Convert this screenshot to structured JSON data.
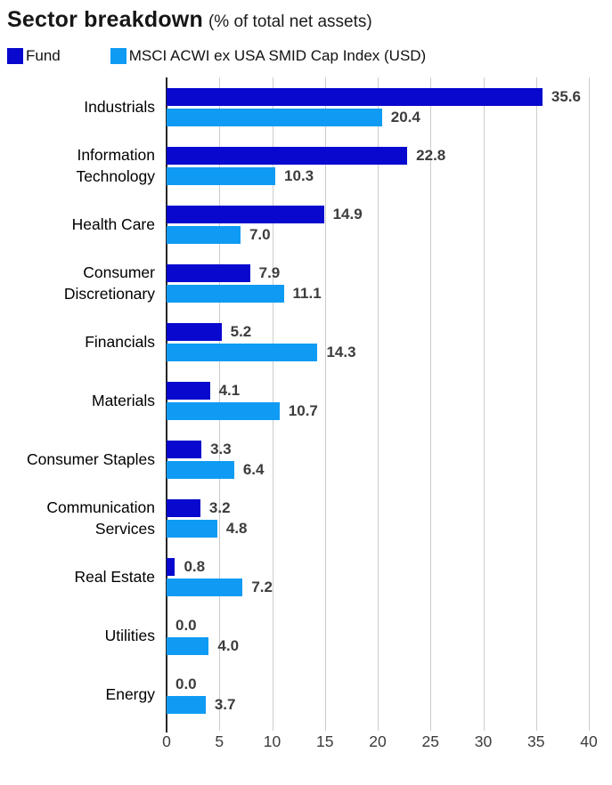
{
  "title": {
    "main": "Sector breakdown",
    "subtitle": "(% of total net assets)"
  },
  "colors": {
    "fund": "#0808CE",
    "index": "#0F9BF3",
    "gridline": "#cccccc",
    "axis_line": "#262626",
    "value_label": "#3c3c3c"
  },
  "chart_data": {
    "type": "bar",
    "orientation": "horizontal",
    "title": "Sector breakdown (% of total net assets)",
    "categories": [
      "Industrials",
      "Information Technology",
      "Health Care",
      "Consumer Discretionary",
      "Financials",
      "Materials",
      "Consumer Staples",
      "Communication Services",
      "Real Estate",
      "Utilities",
      "Energy"
    ],
    "series": [
      {
        "name": "Fund",
        "color": "#0808CE",
        "values": [
          35.6,
          22.8,
          14.9,
          7.9,
          5.2,
          4.1,
          3.3,
          3.2,
          0.8,
          0.0,
          0.0
        ]
      },
      {
        "name": "MSCI ACWI ex USA SMID Cap Index (USD)",
        "color": "#0F9BF3",
        "values": [
          20.4,
          10.3,
          7.0,
          11.1,
          14.3,
          10.7,
          6.4,
          4.8,
          7.2,
          4.0,
          3.7
        ]
      }
    ],
    "xlabel": "",
    "ylabel": "",
    "xlim": [
      0,
      40
    ],
    "xticks": [
      0,
      5,
      10,
      15,
      20,
      25,
      30,
      35,
      40
    ],
    "grid": true,
    "value_labels": true,
    "value_label_decimals": 1,
    "legend_position": "top"
  }
}
